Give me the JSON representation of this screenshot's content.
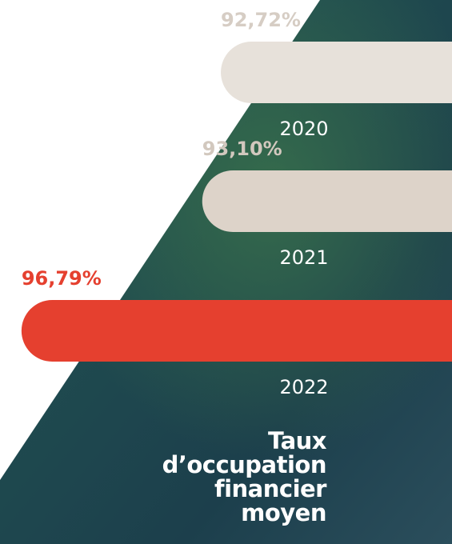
{
  "chart_data": {
    "type": "bar",
    "orientation": "horizontal",
    "title": "Taux\nd’occupation\nfinancier\nmoyen",
    "categories": [
      "2020",
      "2021",
      "2022"
    ],
    "values": [
      92.72,
      93.1,
      96.79
    ],
    "value_labels": [
      "92,72%",
      "93,10%",
      "96,79%"
    ],
    "colors": [
      "#e7e1da",
      "#ddd3c9",
      "#e5402f"
    ],
    "label_colors": [
      "#d6cdc4",
      "#d2c8be",
      "#e5402f"
    ],
    "xlim": [
      88,
      97
    ]
  }
}
